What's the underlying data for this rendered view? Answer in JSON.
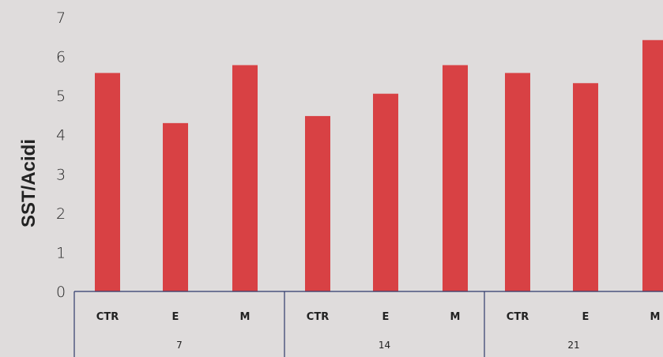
{
  "chart_data": {
    "type": "bar",
    "ylabel": "SST/Acidi",
    "ylim": [
      0,
      7
    ],
    "yticks": [
      0,
      1,
      2,
      3,
      4,
      5,
      6,
      7
    ],
    "grid": false,
    "groups": [
      {
        "label": "7",
        "categories": [
          "CTR",
          "E",
          "M"
        ],
        "values": [
          5.58,
          4.3,
          5.78
        ]
      },
      {
        "label": "14",
        "categories": [
          "CTR",
          "E",
          "M"
        ],
        "values": [
          4.48,
          5.05,
          5.78
        ]
      },
      {
        "label": "21",
        "categories": [
          "CTR",
          "E",
          "M"
        ],
        "values": [
          5.58,
          5.32,
          6.42
        ]
      }
    ],
    "bar_color": "#d84144",
    "axis_color": "#2f3a6b"
  }
}
